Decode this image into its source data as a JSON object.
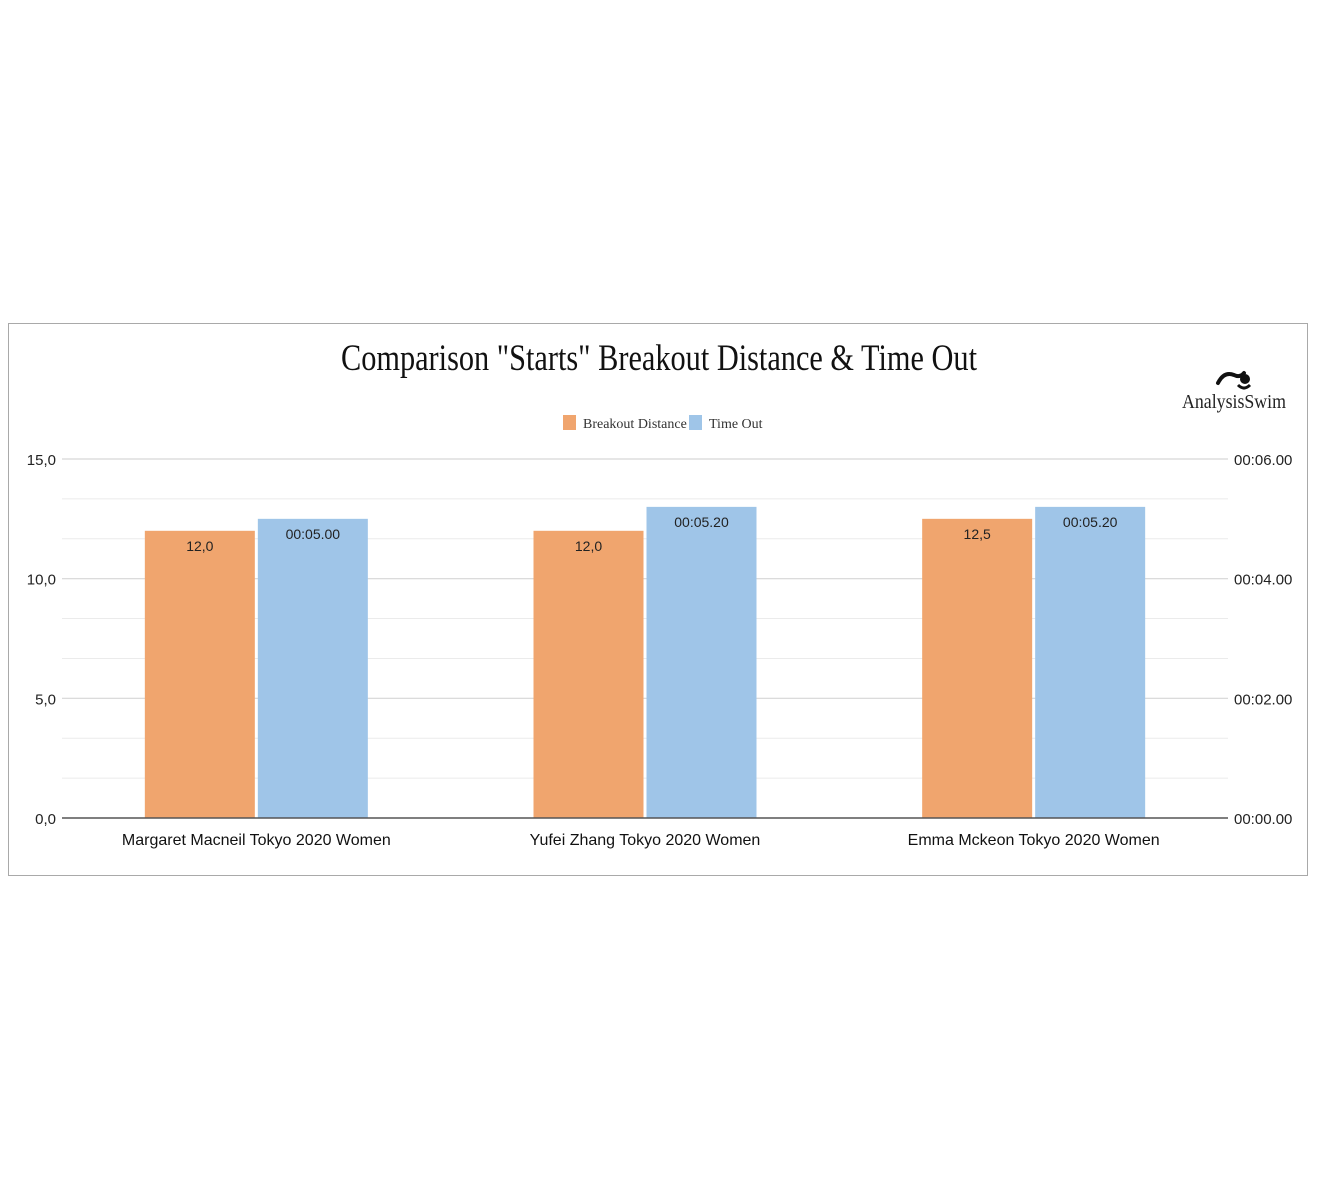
{
  "chart_data": {
    "type": "bar",
    "title": "Comparison \"Starts\" Breakout Distance & Time Out",
    "categories": [
      "Margaret Macneil Tokyo 2020 Women",
      "Yufei Zhang Tokyo 2020 Women",
      "Emma Mckeon Tokyo 2020 Women"
    ],
    "series": [
      {
        "name": "Breakout Distance",
        "axis": "left",
        "color": "#f0a56e",
        "values": [
          12.0,
          12.0,
          12.5
        ],
        "labels": [
          "12,0",
          "12,0",
          "12,5"
        ]
      },
      {
        "name": "Time Out",
        "axis": "right",
        "color": "#9fc5e8",
        "values": [
          5.0,
          5.2,
          5.2
        ],
        "labels": [
          "00:05.00",
          "00:05.20",
          "00:05.20"
        ]
      }
    ],
    "y_left": {
      "lim": [
        0,
        15
      ],
      "ticks": [
        0,
        5,
        10,
        15
      ],
      "tick_labels": [
        "0,0",
        "5,0",
        "10,0",
        "15,0"
      ]
    },
    "y_right": {
      "lim": [
        0,
        6
      ],
      "ticks": [
        0,
        2,
        4,
        6
      ],
      "tick_labels": [
        "00:00.00",
        "00:02.00",
        "00:04.00",
        "00:06.00"
      ]
    },
    "grid": true,
    "legend_position": "top-center"
  },
  "logo": {
    "text": "AnalysisSwim"
  }
}
